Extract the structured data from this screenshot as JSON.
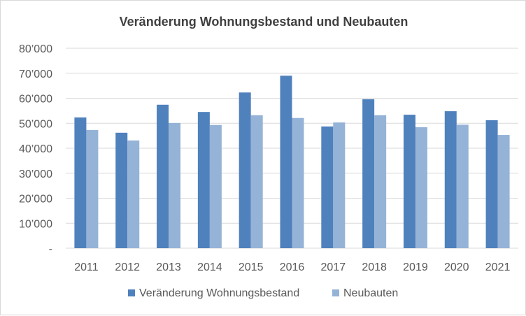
{
  "chart_data": {
    "type": "bar",
    "title": "Veränderung Wohnungsbestand und Neubauten",
    "xlabel": "",
    "ylabel": "",
    "categories": [
      "2011",
      "2012",
      "2013",
      "2014",
      "2015",
      "2016",
      "2017",
      "2018",
      "2019",
      "2020",
      "2021"
    ],
    "series": [
      {
        "name": "Veränderung Wohnungsbestand",
        "color": "#4f81bd",
        "values": [
          52300,
          46200,
          57400,
          54500,
          62300,
          69000,
          48700,
          59600,
          53400,
          54800,
          51200
        ]
      },
      {
        "name": "Neubauten",
        "color": "#95b3d7",
        "values": [
          47300,
          43100,
          50100,
          49300,
          53200,
          52100,
          50300,
          53200,
          48400,
          49400,
          45300
        ]
      }
    ],
    "ylim": [
      0,
      80000
    ],
    "yticks": [
      0,
      10000,
      20000,
      30000,
      40000,
      50000,
      60000,
      70000,
      80000
    ],
    "ytick_labels": [
      "-",
      "10’000",
      "20’000",
      "30’000",
      "40’000",
      "50’000",
      "60’000",
      "70’000",
      "80’000"
    ],
    "grid": true,
    "legend_position": "bottom"
  }
}
